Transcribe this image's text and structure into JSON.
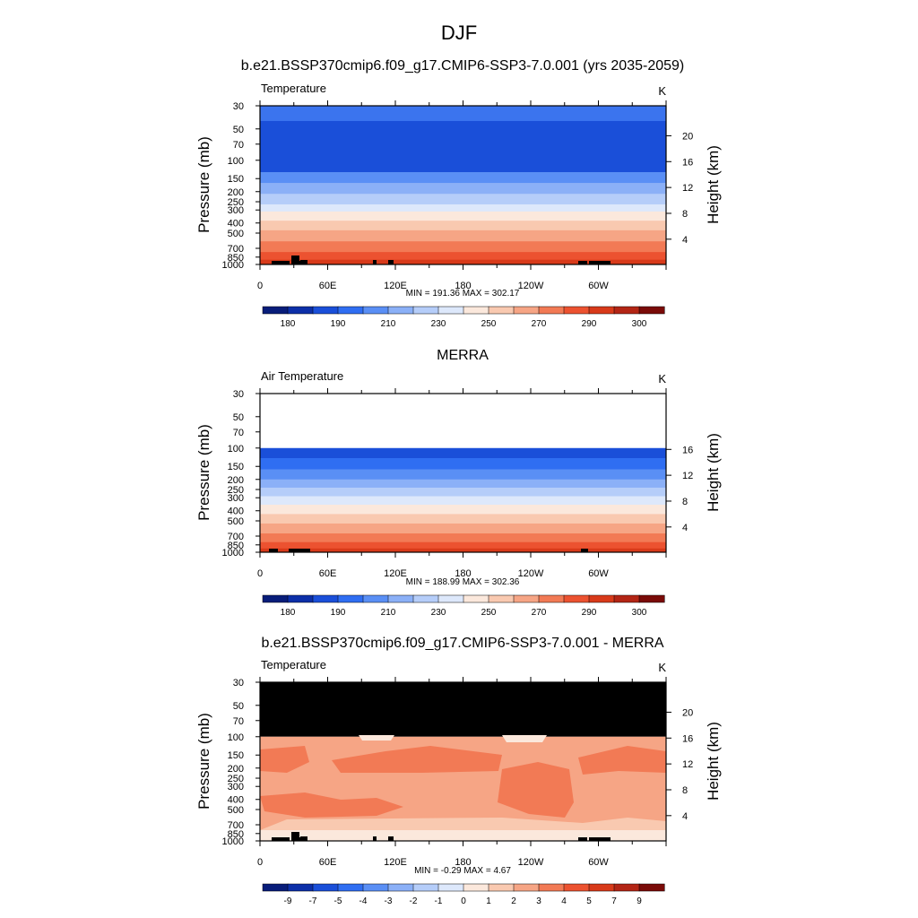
{
  "page": {
    "title": "DJF"
  },
  "chart_data": [
    {
      "type": "heatmap",
      "title": "b.e21.BSSP370cmip6.f09_g17.CMIP6-SSP3-7.0.001 (yrs 2035-2059)",
      "left_label": "Temperature",
      "units": "K",
      "ylabel": "Pressure (mb)",
      "y2label": "Height (km)",
      "pressure_ticks": [
        "30",
        "50",
        "70",
        "100",
        "150",
        "200",
        "250",
        "300",
        "400",
        "500",
        "700",
        "850",
        "1000"
      ],
      "height_ticks": [
        "20",
        "16",
        "12",
        "8",
        "4"
      ],
      "x_ticks": [
        "0",
        "60E",
        "120E",
        "180",
        "120W",
        "60W"
      ],
      "stats": "MIN = 191.36  MAX = 302.17",
      "colorbar_labels": [
        "180",
        "190",
        "210",
        "230",
        "250",
        "270",
        "290",
        "300"
      ],
      "colorbar_colors": [
        "#081d7a",
        "#0c2fa8",
        "#1a4fd9",
        "#2f6ef2",
        "#5a8ff5",
        "#8bb0f7",
        "#b5cdf9",
        "#dde8fb",
        "#fbe8dc",
        "#f9c9b0",
        "#f6a585",
        "#f27a55",
        "#ec5230",
        "#d83a1a",
        "#b32515",
        "#7a0b08"
      ],
      "bands": [
        {
          "p_top": 30,
          "p_bottom": 42,
          "color": "#3b74ee"
        },
        {
          "p_top": 42,
          "p_bottom": 130,
          "color": "#1a4fd9"
        },
        {
          "p_top": 130,
          "p_bottom": 165,
          "color": "#5a8ff5"
        },
        {
          "p_top": 165,
          "p_bottom": 210,
          "color": "#8bb0f7"
        },
        {
          "p_top": 210,
          "p_bottom": 265,
          "color": "#b5cdf9"
        },
        {
          "p_top": 265,
          "p_bottom": 310,
          "color": "#dde8fb"
        },
        {
          "p_top": 310,
          "p_bottom": 380,
          "color": "#fbe8dc"
        },
        {
          "p_top": 380,
          "p_bottom": 470,
          "color": "#f9c9b0"
        },
        {
          "p_top": 470,
          "p_bottom": 600,
          "color": "#f6a585"
        },
        {
          "p_top": 600,
          "p_bottom": 760,
          "color": "#f27a55"
        },
        {
          "p_top": 760,
          "p_bottom": 900,
          "color": "#ec5230"
        },
        {
          "p_top": 900,
          "p_bottom": 1000,
          "color": "#d83a1a"
        }
      ]
    },
    {
      "type": "heatmap",
      "title": "MERRA",
      "left_label": "Air Temperature",
      "units": "K",
      "ylabel": "Pressure (mb)",
      "y2label": "Height (km)",
      "pressure_ticks": [
        "30",
        "50",
        "70",
        "100",
        "150",
        "200",
        "250",
        "300",
        "400",
        "500",
        "700",
        "850",
        "1000"
      ],
      "height_ticks": [
        "16",
        "12",
        "8",
        "4"
      ],
      "x_ticks": [
        "0",
        "60E",
        "120E",
        "180",
        "120W",
        "60W"
      ],
      "stats": "MIN = 188.99  MAX = 302.36",
      "colorbar_labels": [
        "180",
        "190",
        "210",
        "230",
        "250",
        "270",
        "290",
        "300"
      ],
      "colorbar_colors": [
        "#081d7a",
        "#0c2fa8",
        "#1a4fd9",
        "#2f6ef2",
        "#5a8ff5",
        "#8bb0f7",
        "#b5cdf9",
        "#dde8fb",
        "#fbe8dc",
        "#f9c9b0",
        "#f6a585",
        "#f27a55",
        "#ec5230",
        "#d83a1a",
        "#b32515",
        "#7a0b08"
      ],
      "bands": [
        {
          "p_top": 100,
          "p_bottom": 125,
          "color": "#1a4fd9"
        },
        {
          "p_top": 125,
          "p_bottom": 160,
          "color": "#2f6ef2"
        },
        {
          "p_top": 160,
          "p_bottom": 200,
          "color": "#5a8ff5"
        },
        {
          "p_top": 200,
          "p_bottom": 240,
          "color": "#8bb0f7"
        },
        {
          "p_top": 240,
          "p_bottom": 290,
          "color": "#b5cdf9"
        },
        {
          "p_top": 290,
          "p_bottom": 350,
          "color": "#dde8fb"
        },
        {
          "p_top": 350,
          "p_bottom": 430,
          "color": "#fbe8dc"
        },
        {
          "p_top": 430,
          "p_bottom": 530,
          "color": "#f9c9b0"
        },
        {
          "p_top": 530,
          "p_bottom": 660,
          "color": "#f6a585"
        },
        {
          "p_top": 660,
          "p_bottom": 800,
          "color": "#f27a55"
        },
        {
          "p_top": 800,
          "p_bottom": 920,
          "color": "#ec5230"
        },
        {
          "p_top": 920,
          "p_bottom": 1000,
          "color": "#d83a1a"
        }
      ]
    },
    {
      "type": "heatmap",
      "title": "b.e21.BSSP370cmip6.f09_g17.CMIP6-SSP3-7.0.001 - MERRA",
      "left_label": "Temperature",
      "units": "K",
      "ylabel": "Pressure (mb)",
      "y2label": "Height (km)",
      "pressure_ticks": [
        "30",
        "50",
        "70",
        "100",
        "150",
        "200",
        "250",
        "300",
        "400",
        "500",
        "700",
        "850",
        "1000"
      ],
      "height_ticks": [
        "20",
        "16",
        "12",
        "8",
        "4"
      ],
      "x_ticks": [
        "0",
        "60E",
        "120E",
        "180",
        "120W",
        "60W"
      ],
      "stats": "MIN =  -0.29  MAX =   4.67",
      "colorbar_labels": [
        "-9",
        "-7",
        "-5",
        "-4",
        "-3",
        "-2",
        "-1",
        "0",
        "1",
        "2",
        "3",
        "4",
        "5",
        "7",
        "9"
      ],
      "colorbar_colors": [
        "#081d7a",
        "#0c2fa8",
        "#1a4fd9",
        "#2f6ef2",
        "#5a8ff5",
        "#8bb0f7",
        "#b5cdf9",
        "#dde8fb",
        "#fbe8dc",
        "#f9c9b0",
        "#f6a585",
        "#f27a55",
        "#ec5230",
        "#d83a1a",
        "#b32515",
        "#7a0b08"
      ],
      "missing_above_mb": 100,
      "base_color": "#f6a585",
      "bands": [
        {
          "p_top": 100,
          "p_bottom": 1000,
          "color": "#f6a585"
        }
      ]
    }
  ]
}
